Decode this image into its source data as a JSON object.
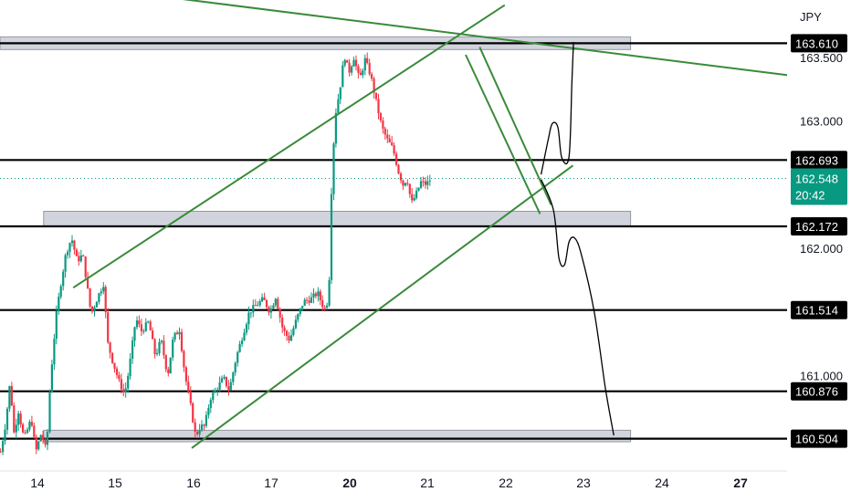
{
  "chart_data": {
    "type": "candlestick",
    "currency": "JPY",
    "x_ticks": [
      {
        "label": "14",
        "bold": false
      },
      {
        "label": "15",
        "bold": false
      },
      {
        "label": "16",
        "bold": false
      },
      {
        "label": "17",
        "bold": false
      },
      {
        "label": "20",
        "bold": true
      },
      {
        "label": "21",
        "bold": false
      },
      {
        "label": "22",
        "bold": false
      },
      {
        "label": "23",
        "bold": false
      },
      {
        "label": "24",
        "bold": false
      },
      {
        "label": "27",
        "bold": true
      }
    ],
    "y_ticks": [
      {
        "value": 163.5,
        "label": "163.500"
      },
      {
        "value": 163.0,
        "label": "163.000"
      },
      {
        "value": 162.0,
        "label": "162.000"
      },
      {
        "value": 161.0,
        "label": "161.000"
      }
    ],
    "ylim": [
      160.25,
      163.95
    ],
    "xlim": [
      13.62,
      27.7
    ],
    "price_levels": [
      {
        "value": 163.61,
        "label": "163.610"
      },
      {
        "value": 162.693,
        "label": "162.693"
      },
      {
        "value": 162.172,
        "label": "162.172"
      },
      {
        "value": 161.514,
        "label": "161.514"
      },
      {
        "value": 160.876,
        "label": "160.876"
      },
      {
        "value": 160.504,
        "label": "160.504"
      }
    ],
    "current_price": {
      "value": 162.548,
      "label": "162.548",
      "countdown": "20:42"
    },
    "zones": [
      {
        "x_start": 13.62,
        "x_end": 24.9,
        "low": 163.56,
        "high": 163.66
      },
      {
        "x_start": 14.4,
        "x_end": 24.9,
        "low": 162.172,
        "high": 162.29
      },
      {
        "x_start": 14.4,
        "x_end": 24.9,
        "low": 160.48,
        "high": 160.57
      }
    ],
    "trend_lines": [
      {
        "points": [
          [
            17.05,
            160.43
          ],
          [
            23.87,
            162.65
          ]
        ]
      },
      {
        "points": [
          [
            14.93,
            161.69
          ],
          [
            22.65,
            163.91
          ]
        ]
      },
      {
        "points": [
          [
            16.65,
            163.97
          ],
          [
            27.7,
            163.36
          ]
        ]
      },
      {
        "points": [
          [
            21.95,
            163.52
          ],
          [
            23.28,
            162.27
          ]
        ]
      },
      {
        "points": [
          [
            22.2,
            163.58
          ],
          [
            23.48,
            162.34
          ]
        ]
      }
    ],
    "projection": {
      "upper_path": [
        [
          23.3,
          162.58
        ],
        [
          23.43,
          162.86
        ],
        [
          23.5,
          162.98
        ],
        [
          23.6,
          162.95
        ],
        [
          23.67,
          162.71
        ],
        [
          23.8,
          162.72
        ],
        [
          23.85,
          163.3
        ],
        [
          23.88,
          163.62
        ]
      ],
      "lower_path": [
        [
          23.3,
          162.54
        ],
        [
          23.52,
          162.3
        ],
        [
          23.62,
          161.92
        ],
        [
          23.72,
          161.87
        ],
        [
          23.8,
          162.05
        ],
        [
          23.9,
          162.08
        ],
        [
          24.02,
          161.95
        ],
        [
          24.25,
          161.5
        ],
        [
          24.45,
          160.9
        ],
        [
          24.6,
          160.53
        ]
      ]
    },
    "candle_colors": {
      "up": "#089981",
      "down": "#f23645"
    },
    "candle_path": [
      [
        13.63,
        160.4
      ],
      [
        13.72,
        160.62
      ],
      [
        13.8,
        160.95
      ],
      [
        13.87,
        160.55
      ],
      [
        13.95,
        160.72
      ],
      [
        14.05,
        160.5
      ],
      [
        14.18,
        160.66
      ],
      [
        14.26,
        160.4
      ],
      [
        14.36,
        160.55
      ],
      [
        14.45,
        160.4
      ],
      [
        14.52,
        160.95
      ],
      [
        14.62,
        161.45
      ],
      [
        14.7,
        161.7
      ],
      [
        14.8,
        161.96
      ],
      [
        14.9,
        162.08
      ],
      [
        15.0,
        161.9
      ],
      [
        15.1,
        161.95
      ],
      [
        15.18,
        161.7
      ],
      [
        15.25,
        161.48
      ],
      [
        15.38,
        161.63
      ],
      [
        15.47,
        161.72
      ],
      [
        15.55,
        161.25
      ],
      [
        15.63,
        161.12
      ],
      [
        15.75,
        160.95
      ],
      [
        15.85,
        160.85
      ],
      [
        15.93,
        161.05
      ],
      [
        16.05,
        161.45
      ],
      [
        16.15,
        161.35
      ],
      [
        16.28,
        161.42
      ],
      [
        16.4,
        161.15
      ],
      [
        16.5,
        161.28
      ],
      [
        16.62,
        161.0
      ],
      [
        16.72,
        161.3
      ],
      [
        16.83,
        161.36
      ],
      [
        16.93,
        161.0
      ],
      [
        17.03,
        160.76
      ],
      [
        17.12,
        160.52
      ],
      [
        17.2,
        160.6
      ],
      [
        17.28,
        160.6
      ],
      [
        17.38,
        160.82
      ],
      [
        17.5,
        160.9
      ],
      [
        17.62,
        160.98
      ],
      [
        17.72,
        160.88
      ],
      [
        17.85,
        161.15
      ],
      [
        17.95,
        161.3
      ],
      [
        18.08,
        161.5
      ],
      [
        18.2,
        161.55
      ],
      [
        18.33,
        161.6
      ],
      [
        18.45,
        161.5
      ],
      [
        18.55,
        161.62
      ],
      [
        18.68,
        161.36
      ],
      [
        18.8,
        161.28
      ],
      [
        18.93,
        161.45
      ],
      [
        19.05,
        161.58
      ],
      [
        19.18,
        161.6
      ],
      [
        19.3,
        161.65
      ],
      [
        19.42,
        161.52
      ],
      [
        19.5,
        161.6
      ],
      [
        19.56,
        162.62
      ],
      [
        19.62,
        163.05
      ],
      [
        19.7,
        163.25
      ],
      [
        19.78,
        163.52
      ],
      [
        19.86,
        163.38
      ],
      [
        19.95,
        163.5
      ],
      [
        20.05,
        163.32
      ],
      [
        20.15,
        163.48
      ],
      [
        20.25,
        163.36
      ],
      [
        20.35,
        163.15
      ],
      [
        20.45,
        162.95
      ],
      [
        20.55,
        162.85
      ],
      [
        20.65,
        162.78
      ],
      [
        20.75,
        162.6
      ],
      [
        20.83,
        162.5
      ],
      [
        20.9,
        162.55
      ],
      [
        20.98,
        162.35
      ],
      [
        21.06,
        162.42
      ],
      [
        21.15,
        162.52
      ],
      [
        21.25,
        162.5
      ],
      [
        21.33,
        162.55
      ]
    ]
  }
}
